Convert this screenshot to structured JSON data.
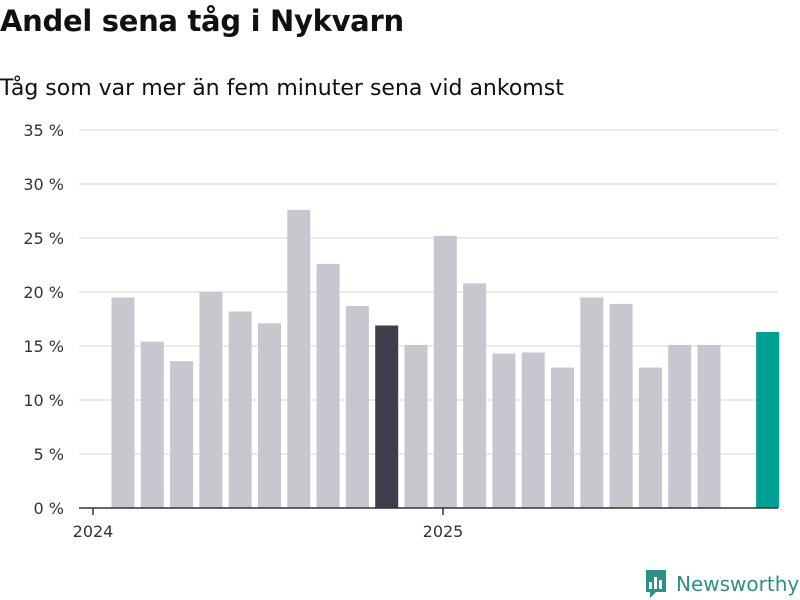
{
  "header": {
    "title": "Andel sena tåg i Nykvarn",
    "subtitle": "Tåg som var mer än fem minuter sena vid ankomst"
  },
  "brand": {
    "name": "Newsworthy",
    "color": "#2e8f87"
  },
  "colors": {
    "default": "#c8c7d0",
    "highlight_dark": "#403e4d",
    "highlight_latest": "#00a195",
    "grid": "#dddddd",
    "axis": "#333333"
  },
  "chart_data": {
    "type": "bar",
    "title": "Andel sena tåg i Nykvarn",
    "subtitle": "Tåg som var mer än fem minuter sena vid ankomst",
    "xlabel": "",
    "ylabel": "",
    "ylim": [
      0,
      35
    ],
    "yticks": [
      0,
      5,
      10,
      15,
      20,
      25,
      30,
      35
    ],
    "ytick_labels": [
      "0 %",
      "5 %",
      "10 %",
      "15 %",
      "20 %",
      "25 %",
      "30 %",
      "35 %"
    ],
    "x_axis_labels": [
      "2024",
      "2025"
    ],
    "categories": [
      "2024-01",
      "2024-02",
      "2024-03",
      "2024-04",
      "2024-05",
      "2024-06",
      "2024-07",
      "2024-08",
      "2024-09",
      "2024-10",
      "2024-11",
      "2024-12",
      "2025-01",
      "2025-02",
      "2025-03",
      "2025-04",
      "2025-05",
      "2025-06",
      "2025-07",
      "2025-08",
      "2025-09",
      "2025-10",
      "2025-11"
    ],
    "values": [
      19.5,
      15.4,
      13.6,
      20.0,
      18.2,
      17.1,
      27.6,
      22.6,
      18.7,
      16.9,
      15.1,
      25.2,
      20.8,
      14.3,
      14.4,
      13.0,
      19.5,
      18.9,
      13.0,
      15.1,
      15.1,
      0,
      16.3
    ],
    "highlight": {
      "dark_index": 9,
      "latest_index": 22
    },
    "grid": true,
    "legend": "none"
  }
}
